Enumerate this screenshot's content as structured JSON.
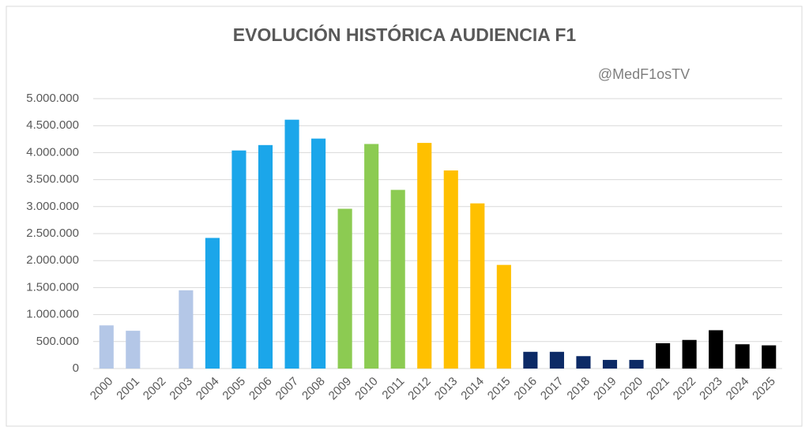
{
  "chart_data": {
    "type": "bar",
    "title": "EVOLUCIÓN HISTÓRICA AUDIENCIA F1",
    "annotation": "@MedF1osTV",
    "categories": [
      "2000",
      "2001",
      "2002",
      "2003",
      "2004",
      "2005",
      "2006",
      "2007",
      "2008",
      "2009",
      "2010",
      "2011",
      "2012",
      "2013",
      "2014",
      "2015",
      "2016",
      "2017",
      "2018",
      "2019",
      "2020",
      "2021",
      "2022",
      "2023",
      "2024",
      "2025"
    ],
    "values": [
      800000,
      700000,
      null,
      1450000,
      2420000,
      4040000,
      4140000,
      4610000,
      4260000,
      2960000,
      4160000,
      3310000,
      4180000,
      3670000,
      3060000,
      1920000,
      310000,
      310000,
      230000,
      160000,
      160000,
      470000,
      530000,
      710000,
      450000,
      430000
    ],
    "colors": [
      "#b4c7e7",
      "#b4c7e7",
      "#b4c7e7",
      "#b4c7e7",
      "#1ba6ea",
      "#1ba6ea",
      "#1ba6ea",
      "#1ba6ea",
      "#1ba6ea",
      "#8ccb52",
      "#8ccb52",
      "#8ccb52",
      "#ffc000",
      "#ffc000",
      "#ffc000",
      "#ffc000",
      "#0c2a66",
      "#0c2a66",
      "#0c2a66",
      "#0c2a66",
      "#0c2a66",
      "#000000",
      "#000000",
      "#000000",
      "#000000",
      "#000000"
    ],
    "ylim": [
      0,
      5000000
    ],
    "yticks": [
      0,
      {
        "value": 500000,
        "label": "500.000"
      },
      {
        "value": 1000000,
        "label": "1.000.000"
      },
      {
        "value": 1500000,
        "label": "1.500.000"
      },
      {
        "value": 2000000,
        "label": "2.000.000"
      },
      {
        "value": 2500000,
        "label": "2.500.000"
      },
      {
        "value": 3000000,
        "label": "3.000.000"
      },
      {
        "value": 3500000,
        "label": "3.500.000"
      },
      {
        "value": 4000000,
        "label": "4.000.000"
      },
      {
        "value": 4500000,
        "label": "4.500.000"
      },
      {
        "value": 5000000,
        "label": "5.000.000"
      }
    ],
    "grid": true
  }
}
